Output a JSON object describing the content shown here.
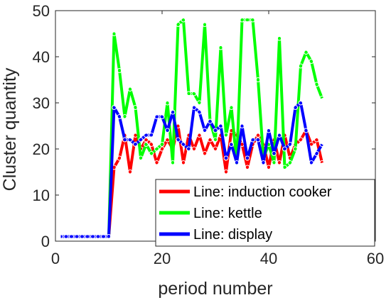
{
  "chart_data": {
    "type": "line",
    "title": "",
    "xlabel": "period number",
    "ylabel": "Cluster quantity",
    "xlim": [
      0,
      60
    ],
    "ylim": [
      0,
      50
    ],
    "xticks": [
      0,
      20,
      40,
      60
    ],
    "yticks": [
      0,
      10,
      20,
      30,
      40,
      50
    ],
    "grid": false,
    "legend_position": "bottom-right",
    "x": [
      1,
      2,
      3,
      4,
      5,
      6,
      7,
      8,
      9,
      10,
      11,
      12,
      13,
      14,
      15,
      16,
      17,
      18,
      19,
      20,
      21,
      22,
      23,
      24,
      25,
      26,
      27,
      28,
      29,
      30,
      31,
      32,
      33,
      34,
      35,
      36,
      37,
      38,
      39,
      40,
      41,
      42,
      43,
      44,
      45,
      46,
      47,
      48,
      49,
      50
    ],
    "series": [
      {
        "name": "Line: induction cooker",
        "color": "#ff0000",
        "values": [
          1,
          1,
          1,
          1,
          1,
          1,
          1,
          1,
          1,
          1,
          16,
          18,
          23,
          15,
          23,
          20,
          22,
          21,
          17,
          20,
          22,
          20,
          25,
          17,
          23,
          20,
          23,
          19,
          22,
          20,
          23,
          15,
          24,
          23,
          21,
          16,
          21,
          23,
          21,
          16,
          22,
          17,
          23,
          18,
          21,
          22,
          24,
          21,
          22,
          17
        ]
      },
      {
        "name": "Line: kettle",
        "color": "#00ff00",
        "values": [
          1,
          1,
          1,
          1,
          1,
          1,
          1,
          1,
          1,
          1,
          45,
          37,
          27,
          33,
          29,
          18,
          21,
          19,
          20,
          21,
          30,
          17,
          47,
          48,
          32,
          32,
          30,
          47,
          26,
          22,
          42,
          23,
          29,
          17,
          48,
          48,
          48,
          35,
          18,
          21,
          17,
          44,
          16,
          17,
          20,
          38,
          41,
          39,
          34,
          31
        ]
      },
      {
        "name": "Line: display",
        "color": "#0000ff",
        "values": [
          1,
          1,
          1,
          1,
          1,
          1,
          1,
          1,
          1,
          1,
          29,
          27,
          22,
          22,
          21,
          22,
          23,
          23,
          27,
          27,
          24,
          28,
          22,
          21,
          20,
          29,
          28,
          24,
          26,
          24,
          25,
          18,
          21,
          17,
          25,
          18,
          22,
          22,
          17,
          24,
          19,
          23,
          20,
          21,
          29,
          30,
          24,
          17,
          19,
          21
        ]
      }
    ]
  }
}
